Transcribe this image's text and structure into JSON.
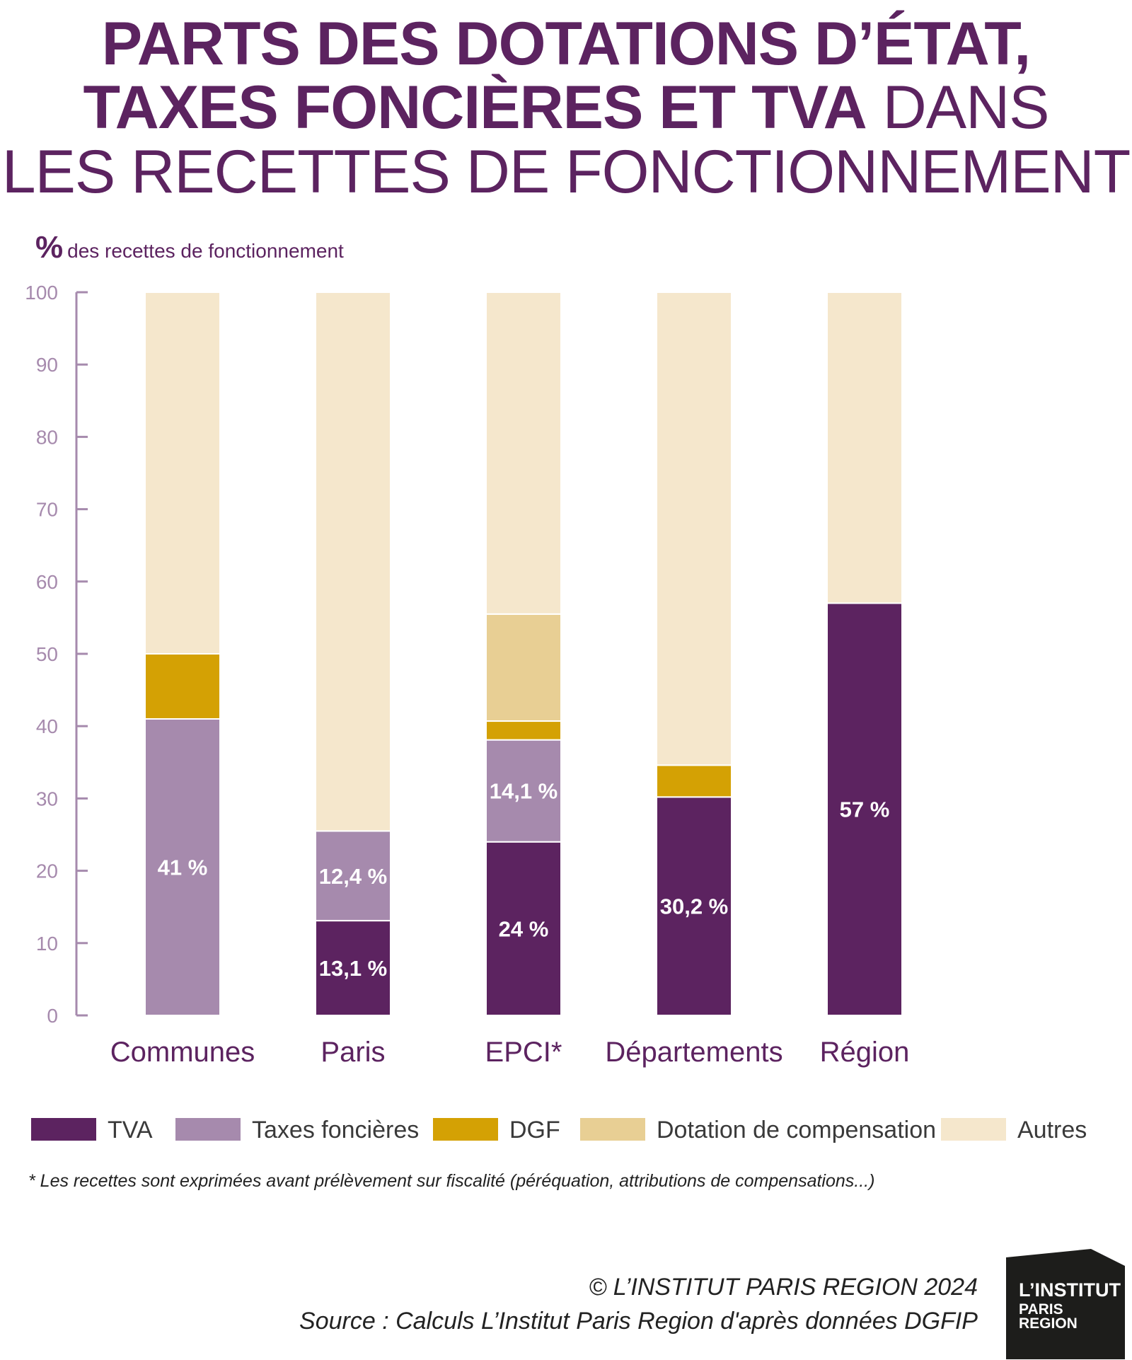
{
  "title": {
    "line1": "PARTS DES DOTATIONS D’ÉTAT,",
    "line2_bold": "TAXES FONCIÈRES ET TVA",
    "line2_rest": "DANS",
    "line3": "LES RECETTES DE FONCTIONNEMENT"
  },
  "unit_label": {
    "symbol": "%",
    "text": "des recettes de fonctionnement"
  },
  "chart_data": {
    "type": "bar",
    "stacked": true,
    "categories": [
      "Communes",
      "Paris",
      "EPCI*",
      "Départements",
      "Région"
    ],
    "ylim": [
      0,
      100
    ],
    "yticks": [
      "0",
      "10",
      "20",
      "30",
      "40",
      "50",
      "60",
      "70",
      "80",
      "90",
      "100"
    ],
    "series": [
      {
        "name": "TVA",
        "color": "#5c2360",
        "values": [
          0,
          13.1,
          24,
          30.2,
          57
        ],
        "labels": [
          "",
          "13,1 %",
          "24 %",
          "30,2 %",
          "57 %"
        ]
      },
      {
        "name": "Taxes foncières",
        "color": "#a68aad",
        "values": [
          41,
          12.4,
          14.1,
          0,
          0
        ],
        "labels": [
          "41 %",
          "12,4 %",
          "14,1 %",
          "",
          ""
        ]
      },
      {
        "name": "DGF",
        "color": "#d4a104",
        "values": [
          9,
          0,
          2.6,
          4.4,
          0
        ],
        "labels": [
          "",
          "",
          "",
          "",
          ""
        ]
      },
      {
        "name": "Dotation de compensation",
        "color": "#e8cf94",
        "values": [
          0,
          0,
          14.8,
          0,
          0
        ],
        "labels": [
          "",
          "",
          "",
          "",
          ""
        ]
      },
      {
        "name": "Autres",
        "color": "#f5e7cc",
        "values": [
          50,
          74.5,
          44.5,
          65.4,
          43
        ],
        "labels": [
          "",
          "",
          "",
          "",
          ""
        ]
      }
    ],
    "grid": false,
    "legend_position": "bottom"
  },
  "footnote": "* Les recettes sont exprimées avant prélèvement sur fiscalité (péréquation, attributions de compensations...)",
  "copyright": "© L’INSTITUT PARIS REGION 2024",
  "source": "Source : Calculs L’Institut Paris Region d'après données DGFIP",
  "logo": {
    "line1": "L’INSTITUT",
    "line2": "PARIS",
    "line3": "REGION"
  }
}
